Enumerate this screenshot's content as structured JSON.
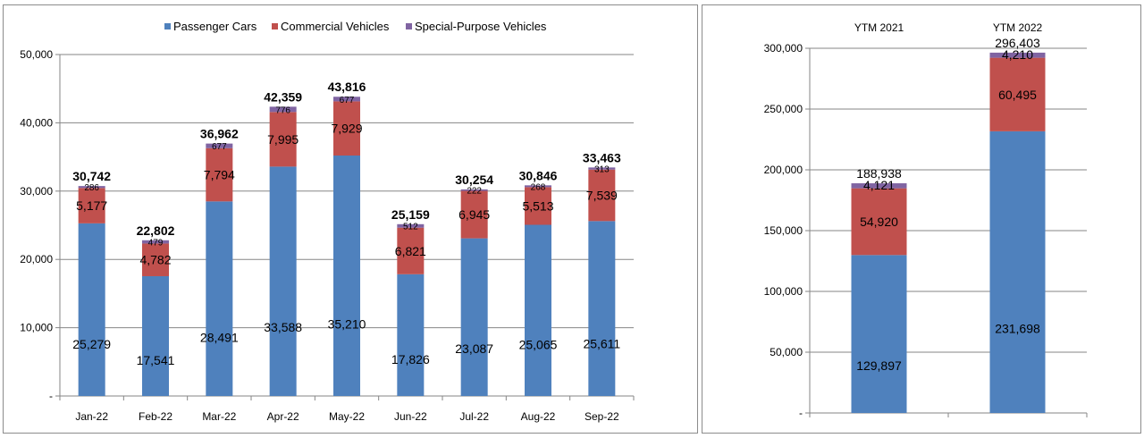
{
  "colors": {
    "passenger": "#4f81bd",
    "commercial": "#c0504d",
    "special": "#8064a2",
    "grid": "#868686",
    "axis": "#868686"
  },
  "chart_data": [
    {
      "type": "bar",
      "stacked": true,
      "title": "",
      "xlabel": "",
      "ylabel": "",
      "ylim": [
        0,
        50000
      ],
      "y_ticks": [
        "-",
        "10,000",
        "20,000",
        "30,000",
        "40,000",
        "50,000"
      ],
      "y_tick_values": [
        0,
        10000,
        20000,
        30000,
        40000,
        50000
      ],
      "legend_position": "top-center",
      "categories": [
        "Jan-22",
        "Feb-22",
        "Mar-22",
        "Apr-22",
        "May-22",
        "Jun-22",
        "Jul-22",
        "Aug-22",
        "Sep-22"
      ],
      "series": [
        {
          "name": "Passenger Cars",
          "values": [
            25279,
            17541,
            28491,
            33588,
            35210,
            17826,
            23087,
            25065,
            25611
          ]
        },
        {
          "name": "Commercial Vehicles",
          "values": [
            5177,
            4782,
            7794,
            7995,
            7929,
            6821,
            6945,
            5513,
            7539
          ]
        },
        {
          "name": "Special-Purpose Vehicles",
          "values": [
            286,
            479,
            677,
            776,
            677,
            512,
            222,
            268,
            313
          ]
        }
      ],
      "totals": [
        30742,
        22802,
        36962,
        42359,
        43816,
        25159,
        30254,
        30846,
        33463
      ]
    },
    {
      "type": "bar",
      "stacked": true,
      "title": "",
      "xlabel": "",
      "ylabel": "",
      "ylim": [
        0,
        300000
      ],
      "y_ticks": [
        "-",
        "50,000",
        "100,000",
        "150,000",
        "200,000",
        "250,000",
        "300,000"
      ],
      "y_tick_values": [
        0,
        50000,
        100000,
        150000,
        200000,
        250000,
        300000
      ],
      "categories_position": "top",
      "categories": [
        "YTM 2021",
        "YTM 2022"
      ],
      "series": [
        {
          "name": "Passenger Cars",
          "values": [
            129897,
            231698
          ]
        },
        {
          "name": "Commercial Vehicles",
          "values": [
            54920,
            60495
          ]
        },
        {
          "name": "Special-Purpose Vehicles",
          "values": [
            4121,
            4210
          ]
        }
      ],
      "totals": [
        188938,
        296403
      ]
    }
  ]
}
